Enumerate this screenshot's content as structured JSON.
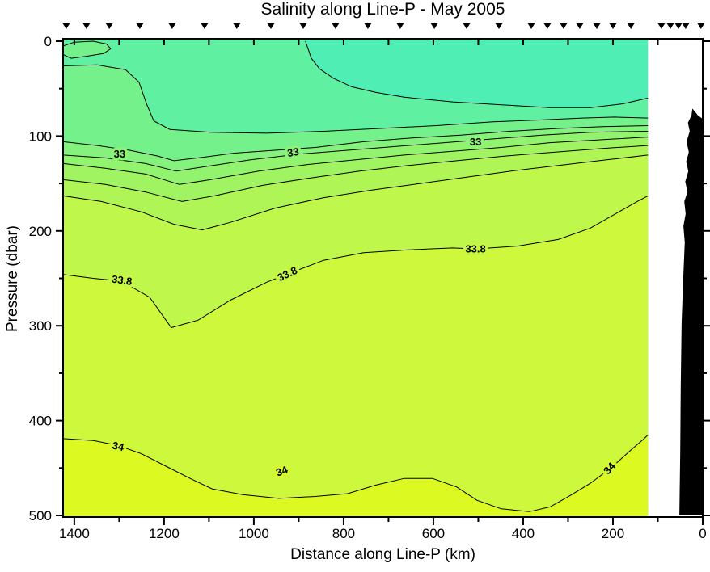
{
  "page": {
    "title": "Salinity along Line-P - May 2005"
  },
  "chart_data": {
    "type": "contour-section",
    "title": "Salinity along Line-P - May 2005",
    "xlabel": "Distance along Line-P (km)",
    "ylabel": "Pressure (dbar)",
    "x_axis": {
      "min": 0,
      "max": 1425,
      "reversed": true,
      "major_ticks": [
        1400,
        1200,
        1000,
        800,
        600,
        400,
        200,
        0
      ],
      "minor_ticks": [
        1300,
        1100,
        900,
        700,
        500,
        300,
        100
      ]
    },
    "y_axis": {
      "min": 0,
      "max": 500,
      "major_ticks": [
        0,
        100,
        200,
        300,
        400,
        500
      ],
      "minor_ticks": [
        50,
        150,
        250,
        350,
        450
      ]
    },
    "station_distances_km": [
      1418,
      1373,
      1322,
      1254,
      1182,
      1110,
      1038,
      962,
      890,
      818,
      746,
      674,
      598,
      526,
      454,
      382,
      346,
      310,
      274,
      236,
      200,
      160,
      92,
      72,
      54,
      38,
      4
    ],
    "data_min_km": 122,
    "background_color": "#5FF0A2",
    "surface_fresh_region": {
      "level_below": 32.4,
      "color": "#4FEEB5",
      "points": [
        [
          885,
          0
        ],
        [
          872,
          18
        ],
        [
          854,
          29
        ],
        [
          823,
          39
        ],
        [
          782,
          48
        ],
        [
          728,
          54
        ],
        [
          665,
          59
        ],
        [
          557,
          64
        ],
        [
          449,
          67
        ],
        [
          341,
          70
        ],
        [
          250,
          70
        ],
        [
          178,
          66
        ],
        [
          122,
          60
        ]
      ]
    },
    "surface_lens": {
      "level": 32.8,
      "color": "#75F18B",
      "points": [
        [
          1425,
          5
        ],
        [
          1400,
          1
        ],
        [
          1358,
          0
        ],
        [
          1328,
          3
        ],
        [
          1319,
          8
        ],
        [
          1335,
          13
        ],
        [
          1375,
          16
        ],
        [
          1407,
          18
        ],
        [
          1425,
          14
        ]
      ]
    },
    "contours": [
      {
        "level": 32.6,
        "fill_below": "#75F18B",
        "labels": [],
        "points": [
          [
            1425,
            26
          ],
          [
            1349,
            25
          ],
          [
            1286,
            30
          ],
          [
            1256,
            43
          ],
          [
            1239,
            66
          ],
          [
            1223,
            84
          ],
          [
            1187,
            93
          ],
          [
            1097,
            96
          ],
          [
            971,
            97
          ],
          [
            845,
            95
          ],
          [
            719,
            92
          ],
          [
            593,
            89
          ],
          [
            467,
            85
          ],
          [
            358,
            83
          ],
          [
            268,
            81
          ],
          [
            196,
            80
          ],
          [
            122,
            81
          ]
        ]
      },
      {
        "level": 32.8,
        "fill_below": "#84F27C",
        "labels": [],
        "points": [
          [
            1425,
            106
          ],
          [
            1349,
            110
          ],
          [
            1277,
            115
          ],
          [
            1214,
            121
          ],
          [
            1178,
            126
          ],
          [
            1124,
            123
          ],
          [
            1043,
            118
          ],
          [
            953,
            115
          ],
          [
            863,
            112
          ],
          [
            755,
            106
          ],
          [
            647,
            102
          ],
          [
            539,
            99
          ],
          [
            431,
            95
          ],
          [
            322,
            92
          ],
          [
            223,
            90
          ],
          [
            122,
            89
          ]
        ]
      },
      {
        "level": 33.0,
        "fill_below": "#92F36E",
        "labels": [
          {
            "text": "33",
            "km": 1299,
            "dbar": 119,
            "rotate": 0,
            "halo": "#8BF375"
          },
          {
            "text": "33",
            "km": 911,
            "dbar": 117,
            "rotate": -10,
            "halo": "#8BF375"
          },
          {
            "text": "33",
            "km": 506,
            "dbar": 106,
            "rotate": 0,
            "halo": "#8BF375"
          }
        ],
        "points": [
          [
            1425,
            120
          ],
          [
            1331,
            123
          ],
          [
            1241,
            129
          ],
          [
            1173,
            137
          ],
          [
            1106,
            132
          ],
          [
            1007,
            125
          ],
          [
            899,
            119
          ],
          [
            791,
            115
          ],
          [
            683,
            111
          ],
          [
            575,
            107
          ],
          [
            467,
            103
          ],
          [
            358,
            99
          ],
          [
            250,
            96
          ],
          [
            122,
            95
          ]
        ]
      },
      {
        "level": 33.2,
        "fill_below": "#A0F461",
        "labels": [],
        "points": [
          [
            1425,
            129
          ],
          [
            1331,
            134
          ],
          [
            1241,
            140
          ],
          [
            1166,
            151
          ],
          [
            1097,
            146
          ],
          [
            989,
            137
          ],
          [
            881,
            130
          ],
          [
            773,
            125
          ],
          [
            665,
            120
          ],
          [
            557,
            116
          ],
          [
            449,
            112
          ],
          [
            340,
            107
          ],
          [
            232,
            104
          ],
          [
            122,
            101
          ]
        ]
      },
      {
        "level": 33.4,
        "fill_below": "#AFF556",
        "labels": [],
        "points": [
          [
            1425,
            146
          ],
          [
            1331,
            151
          ],
          [
            1241,
            159
          ],
          [
            1160,
            169
          ],
          [
            1088,
            163
          ],
          [
            980,
            152
          ],
          [
            872,
            144
          ],
          [
            764,
            137
          ],
          [
            656,
            131
          ],
          [
            548,
            126
          ],
          [
            440,
            121
          ],
          [
            331,
            117
          ],
          [
            223,
            113
          ],
          [
            122,
            110
          ]
        ]
      },
      {
        "level": 33.6,
        "fill_below": "#BFF74B",
        "labels": [],
        "points": [
          [
            1425,
            163
          ],
          [
            1340,
            169
          ],
          [
            1250,
            180
          ],
          [
            1178,
            193
          ],
          [
            1115,
            199
          ],
          [
            1052,
            191
          ],
          [
            953,
            176
          ],
          [
            845,
            165
          ],
          [
            737,
            157
          ],
          [
            629,
            150
          ],
          [
            521,
            143
          ],
          [
            413,
            136
          ],
          [
            304,
            130
          ],
          [
            214,
            125
          ],
          [
            122,
            120
          ]
        ]
      },
      {
        "level": 33.8,
        "fill_below": "#CDF83C",
        "labels": [
          {
            "text": "33.8",
            "km": 1295,
            "dbar": 252,
            "rotate": 8,
            "halo": "#C6F744"
          },
          {
            "text": "33.8",
            "km": 922,
            "dbar": 245,
            "rotate": -25,
            "halo": "#C6F744"
          },
          {
            "text": "33.8",
            "km": 506,
            "dbar": 219,
            "rotate": 0,
            "halo": "#C6F744"
          }
        ],
        "points": [
          [
            1425,
            246
          ],
          [
            1358,
            250
          ],
          [
            1295,
            253
          ],
          [
            1232,
            270
          ],
          [
            1184,
            302
          ],
          [
            1124,
            294
          ],
          [
            1052,
            273
          ],
          [
            971,
            254
          ],
          [
            922,
            245
          ],
          [
            845,
            231
          ],
          [
            755,
            223
          ],
          [
            656,
            220
          ],
          [
            557,
            218
          ],
          [
            506,
            219
          ],
          [
            413,
            216
          ],
          [
            322,
            209
          ],
          [
            250,
            197
          ],
          [
            187,
            180
          ],
          [
            142,
            168
          ],
          [
            122,
            163
          ]
        ]
      },
      {
        "level": 34.0,
        "fill_below": "#DDF922",
        "labels": [
          {
            "text": "34",
            "km": 1304,
            "dbar": 427,
            "rotate": 12,
            "halo": "#D5F92F"
          },
          {
            "text": "34",
            "km": 935,
            "dbar": 453,
            "rotate": -20,
            "halo": "#D5F92F"
          },
          {
            "text": "34",
            "km": 202,
            "dbar": 449,
            "rotate": -48,
            "halo": "#D5F92F"
          }
        ],
        "points": [
          [
            1425,
            419
          ],
          [
            1358,
            421
          ],
          [
            1304,
            426
          ],
          [
            1250,
            435
          ],
          [
            1196,
            448
          ],
          [
            1142,
            461
          ],
          [
            1093,
            472
          ],
          [
            1025,
            478
          ],
          [
            944,
            482
          ],
          [
            863,
            480
          ],
          [
            791,
            477
          ],
          [
            728,
            468
          ],
          [
            665,
            461
          ],
          [
            602,
            461
          ],
          [
            548,
            470
          ],
          [
            503,
            484
          ],
          [
            449,
            493
          ],
          [
            386,
            496
          ],
          [
            340,
            491
          ],
          [
            295,
            479
          ],
          [
            250,
            466
          ],
          [
            202,
            449
          ],
          [
            160,
            431
          ],
          [
            133,
            420
          ],
          [
            122,
            415
          ]
        ]
      }
    ],
    "bathymetry_color": "#000000",
    "bathymetry_polygon": [
      [
        52,
        500
      ],
      [
        50,
        433
      ],
      [
        49,
        365
      ],
      [
        47,
        297
      ],
      [
        43,
        246
      ],
      [
        40,
        212
      ],
      [
        43,
        195
      ],
      [
        38,
        182
      ],
      [
        41,
        169
      ],
      [
        34,
        159
      ],
      [
        39,
        148
      ],
      [
        32,
        137
      ],
      [
        37,
        127
      ],
      [
        31,
        117
      ],
      [
        36,
        106
      ],
      [
        29,
        95
      ],
      [
        33,
        86
      ],
      [
        25,
        78
      ],
      [
        23,
        71
      ],
      [
        16,
        75
      ],
      [
        11,
        78
      ],
      [
        0,
        82
      ],
      [
        0,
        500
      ]
    ]
  }
}
